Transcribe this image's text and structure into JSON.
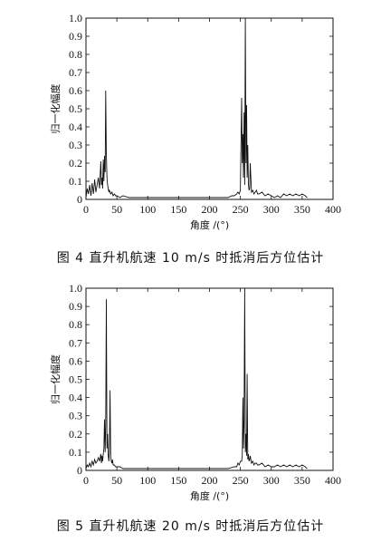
{
  "figures": [
    {
      "caption": "图 4    直升机航速 10 m/s 时抵消后方位估计",
      "chart_data": {
        "type": "line",
        "title": "",
        "xlabel": "角度 /(°)",
        "ylabel": "归一化幅度",
        "xlim": [
          0,
          400
        ],
        "ylim": [
          0,
          1.0
        ],
        "xticks": [
          0,
          50,
          100,
          150,
          200,
          250,
          300,
          350,
          400
        ],
        "yticks": [
          0,
          0.1,
          0.2,
          0.3,
          0.4,
          0.5,
          0.6,
          0.7,
          0.8,
          0.9,
          1.0
        ],
        "series": [
          {
            "x": [
              0,
              2,
              4,
              6,
              8,
              10,
              12,
              14,
              16,
              18,
              20,
              22,
              24,
              25,
              26,
              27,
              28,
              29,
              30,
              31,
              32,
              33,
              34,
              35,
              36,
              37,
              38,
              40,
              42,
              44,
              46,
              48,
              50,
              55,
              60,
              70,
              80,
              90,
              100,
              110,
              120,
              130,
              140,
              150,
              160,
              170,
              180,
              190,
              200,
              210,
              220,
              230,
              236,
              240,
              244,
              246,
              248,
              250,
              252,
              253,
              254,
              255,
              256,
              257,
              258,
              259,
              260,
              261,
              262,
              263,
              264,
              265,
              266,
              268,
              270,
              272,
              274,
              276,
              278,
              280,
              285,
              290,
              295,
              300,
              305,
              310,
              315,
              320,
              325,
              330,
              335,
              340,
              345,
              350,
              355,
              358
            ],
            "y": [
              0.01,
              0.06,
              0.03,
              0.08,
              0.02,
              0.09,
              0.03,
              0.11,
              0.04,
              0.08,
              0.12,
              0.06,
              0.21,
              0.08,
              0.12,
              0.06,
              0.22,
              0.1,
              0.24,
              0.15,
              0.6,
              0.25,
              0.12,
              0.08,
              0.06,
              0.04,
              0.05,
              0.03,
              0.04,
              0.02,
              0.03,
              0.02,
              0.02,
              0.01,
              0.02,
              0.01,
              0.01,
              0.01,
              0.01,
              0.01,
              0.01,
              0.01,
              0.01,
              0.01,
              0.01,
              0.01,
              0.01,
              0.01,
              0.01,
              0.01,
              0.01,
              0.01,
              0.02,
              0.02,
              0.03,
              0.04,
              0.03,
              0.05,
              0.56,
              0.2,
              0.36,
              0.12,
              0.48,
              0.08,
              1.0,
              0.2,
              0.52,
              0.12,
              0.3,
              0.08,
              0.05,
              0.06,
              0.2,
              0.04,
              0.05,
              0.03,
              0.04,
              0.05,
              0.03,
              0.03,
              0.04,
              0.02,
              0.03,
              0.02,
              0.01,
              0.02,
              0.01,
              0.03,
              0.02,
              0.03,
              0.02,
              0.03,
              0.02,
              0.03,
              0.02,
              0.01
            ]
          }
        ]
      }
    },
    {
      "caption": "图 5    直升机航速 20 m/s 时抵消后方位估计",
      "chart_data": {
        "type": "line",
        "title": "",
        "xlabel": "角度 /(°)",
        "ylabel": "归一化幅度",
        "xlim": [
          0,
          400
        ],
        "ylim": [
          0,
          1.0
        ],
        "xticks": [
          0,
          50,
          100,
          150,
          200,
          250,
          300,
          350,
          400
        ],
        "yticks": [
          0,
          0.1,
          0.2,
          0.3,
          0.4,
          0.5,
          0.6,
          0.7,
          0.8,
          0.9,
          1.0
        ],
        "series": [
          {
            "x": [
              0,
              2,
              4,
              6,
              8,
              10,
              12,
              14,
              16,
              18,
              20,
              22,
              24,
              25,
              26,
              27,
              28,
              29,
              30,
              31,
              32,
              33,
              34,
              35,
              36,
              37,
              38,
              39,
              40,
              41,
              42,
              43,
              44,
              46,
              48,
              50,
              55,
              60,
              70,
              80,
              90,
              100,
              110,
              120,
              130,
              140,
              150,
              160,
              170,
              180,
              190,
              200,
              210,
              220,
              230,
              240,
              244,
              246,
              248,
              250,
              252,
              253,
              254,
              255,
              256,
              257,
              258,
              259,
              260,
              261,
              262,
              263,
              264,
              265,
              266,
              268,
              270,
              272,
              274,
              276,
              278,
              280,
              285,
              290,
              295,
              300,
              305,
              310,
              315,
              320,
              325,
              330,
              335,
              340,
              345,
              350,
              355,
              358
            ],
            "y": [
              0.01,
              0.03,
              0.02,
              0.04,
              0.02,
              0.05,
              0.03,
              0.06,
              0.04,
              0.05,
              0.07,
              0.05,
              0.09,
              0.04,
              0.08,
              0.05,
              0.09,
              0.12,
              0.28,
              0.1,
              0.25,
              0.94,
              0.12,
              0.2,
              0.08,
              0.05,
              0.1,
              0.44,
              0.08,
              0.05,
              0.04,
              0.06,
              0.03,
              0.03,
              0.02,
              0.02,
              0.02,
              0.01,
              0.01,
              0.01,
              0.01,
              0.01,
              0.01,
              0.01,
              0.01,
              0.01,
              0.01,
              0.01,
              0.01,
              0.01,
              0.01,
              0.01,
              0.01,
              0.01,
              0.01,
              0.02,
              0.02,
              0.04,
              0.03,
              0.05,
              0.05,
              0.08,
              0.4,
              0.12,
              0.28,
              1.0,
              0.1,
              0.2,
              0.08,
              0.53,
              0.06,
              0.09,
              0.05,
              0.06,
              0.08,
              0.04,
              0.05,
              0.03,
              0.04,
              0.04,
              0.03,
              0.03,
              0.04,
              0.02,
              0.03,
              0.02,
              0.02,
              0.03,
              0.02,
              0.03,
              0.02,
              0.03,
              0.02,
              0.03,
              0.02,
              0.03,
              0.02,
              0.01
            ]
          }
        ]
      }
    }
  ]
}
